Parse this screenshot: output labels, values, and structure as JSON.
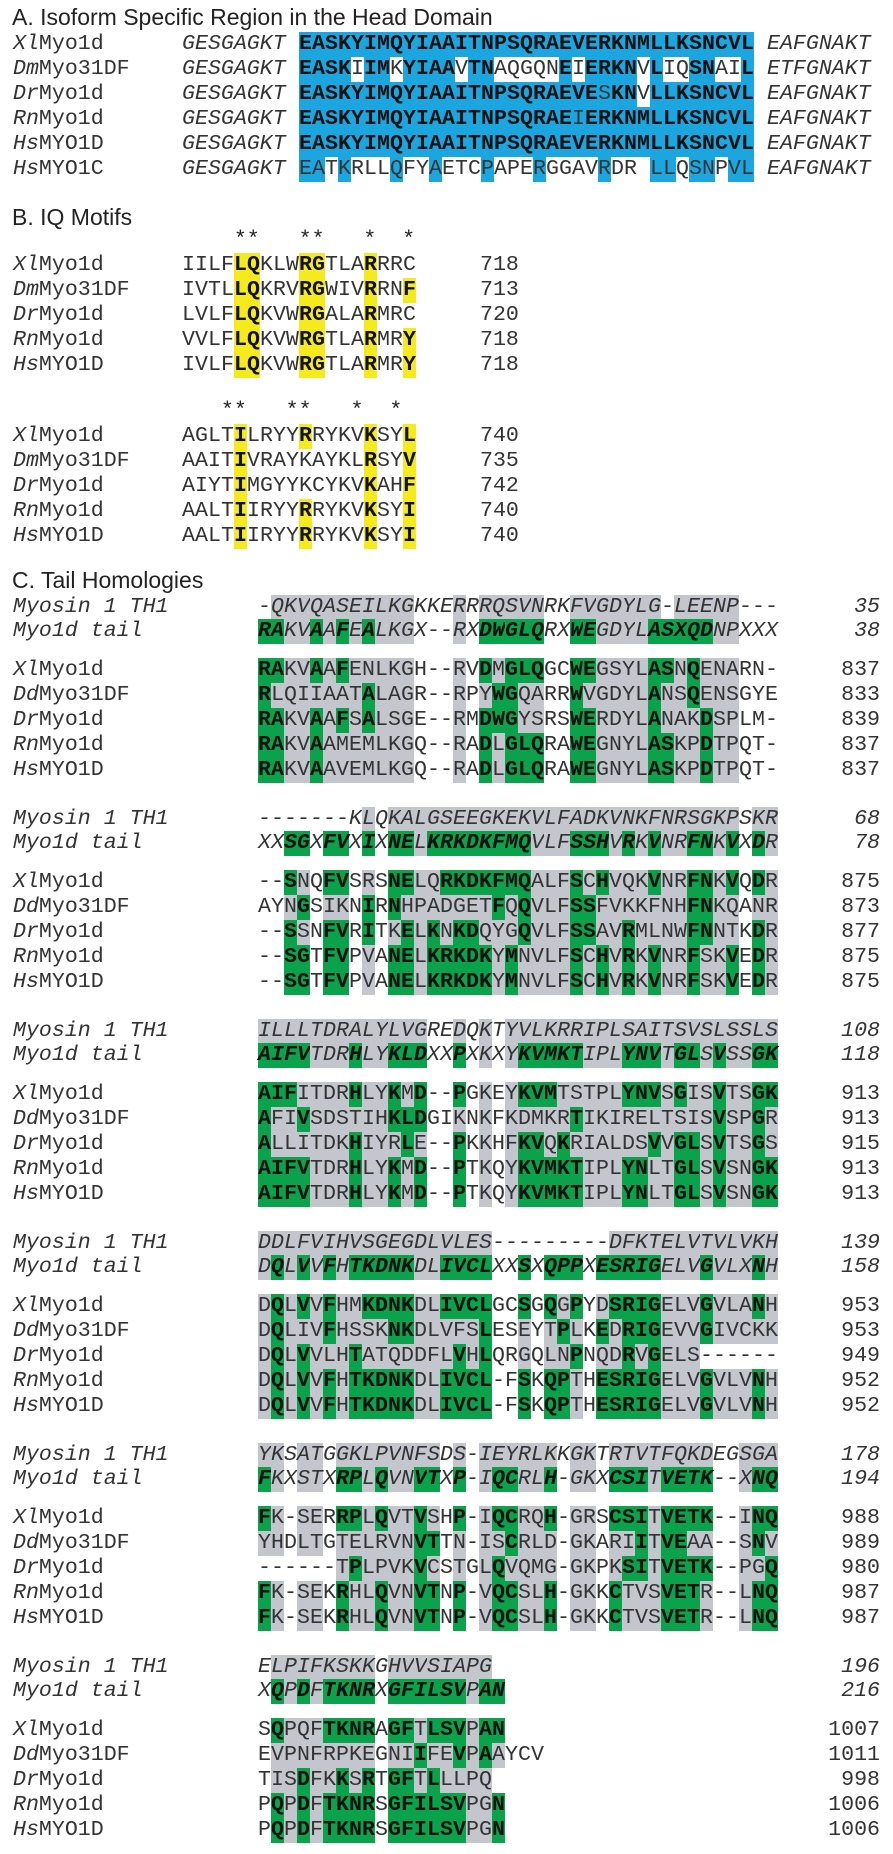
{
  "sectionA": {
    "title": "A. Isoform Specific Region in the Head Domain",
    "color": "#1ba6df",
    "rows": [
      {
        "species": "Xl",
        "gene": "Myo1d",
        "left": "GESGAGKT",
        "seq": "EASKYIMQYIAAITNPSQRAEVERKNMLLKSNCVL",
        "mask": "bbbbbbbbbbbbbbbbbbbbbbbbbbbbbbbbbbb",
        "right": "EAFGNAKT"
      },
      {
        "species": "Dm",
        "gene": "Myo31DF",
        "left": "GESGAGKT",
        "seq": "EASKIIMKYIAAVTNAQGQNEIERKNVLIQSNAIL",
        "mask": "bbbb.bb.bbbb.bb.....b.bbbb.b..bb..b",
        "right": "ETFGNAKT"
      },
      {
        "species": "Dr",
        "gene": "Myo1d",
        "left": "GESGAGKT",
        "seq": "EASKYIMQYIAAITNPSQRAEVESKNVLLKSNCVL",
        "mask": "bbbbbbbbbbbbbbbbbbbbbbbnbb.bbbbbbbb",
        "right": "EAFGNAKT"
      },
      {
        "species": "Rn",
        "gene": "Myo1d",
        "left": "GESGAGKT",
        "seq": "EASKYIMQYIAAITNPSQRAEIERKNMLLKSNCVL",
        "mask": "bbbbbbbbbbbbbbbbbbbbbnbbbbbbbbbbbbb",
        "right": "EAFGNAKT"
      },
      {
        "species": "Hs",
        "gene": "MYO1D",
        "left": "GESGAGKT",
        "seq": "EASKYIMQYIAAITNPSQRAEVERKNMLLKSNCVL",
        "mask": "bbbbbbbbbbbbbbbbbbbbbbbbbbbbbbbbbbb",
        "right": "EAFGNAKT"
      },
      {
        "species": "Hs",
        "gene": "MYO1C",
        "left": "GESGAGKT",
        "seq": "EATKRLLQFYAETCPAPERGGAVRDR LLQSNPVL",
        "mask": "nn.n...n..n...n...n....n...nn.nn.nn",
        "right": "EAFGNAKT"
      }
    ]
  },
  "sectionB": {
    "title": "B. IQ Motifs",
    "color": "#f4ea1e",
    "groups": [
      {
        "stars": "    **   **   *  *",
        "rows": [
          {
            "species": "Xl",
            "gene": "Myo1d",
            "seq": "IILFLQKLWRGTLARRRC",
            "mask": "....yy...yy...y...",
            "end": "718"
          },
          {
            "species": "Dm",
            "gene": "Myo31DF",
            "seq": "IVTLLQKRVRGWIVRRNF",
            "mask": "....yy...yy...y..y",
            "end": "713"
          },
          {
            "species": "Dr",
            "gene": "Myo1d",
            "seq": "LVLFLQKVWRGALARMRC",
            "mask": "....yy...yy...y...",
            "end": "720"
          },
          {
            "species": "Rn",
            "gene": "Myo1d",
            "seq": "VVLFLQKVWRGTLARMRY",
            "mask": "....yy...yy...y..y",
            "end": "718"
          },
          {
            "species": "Hs",
            "gene": "MYO1D",
            "seq": "IVLFLQKVWRGTLARMRY",
            "mask": "....yy...yy...y..y",
            "end": "718"
          }
        ]
      },
      {
        "stars": "   **   **   *  * ",
        "rows": [
          {
            "species": "Xl",
            "gene": "Myo1d",
            "seq": "AGLTILRYYRRYKVKSYL",
            "mask": "....y....y....y..y",
            "end": "740"
          },
          {
            "species": "Dm",
            "gene": "Myo31DF",
            "seq": "AAITIVRAYKAYKLRSYV",
            "mask": "....y.........y..y",
            "end": "735"
          },
          {
            "species": "Dr",
            "gene": "Myo1d",
            "seq": "AIYTIMGYYKCYKVKAHF",
            "mask": "....y.........y..y",
            "end": "742"
          },
          {
            "species": "Rn",
            "gene": "Myo1d",
            "seq": "AALTIIRYYRRYKVKSYI",
            "mask": "....y....y....y..y",
            "end": "740"
          },
          {
            "species": "Hs",
            "gene": "MYO1D",
            "seq": "AALTIIRYYRRYKVKSYI",
            "mask": "....y....y....y..y",
            "end": "740"
          }
        ]
      }
    ]
  },
  "sectionC": {
    "title": "C. Tail Homologies",
    "green": "#0ba24c",
    "gray": "#c3c6cc",
    "blocks": [
      {
        "ref": {
          "label": "Myosin 1 TH1",
          "seq": "-QKVQASEILKGKKERRRQSVNRKFVGDYLG-LEENP---",
          "end": "35"
        },
        "cons": {
          "label": "Myo1d tail",
          "seq": "RAKVAAFEALKGX--RXDWGLQRXWEGDYLASXQDNPXXX",
          "end": "38"
        },
        "mask": "ggssgsgsgsss...s.ggggg..ggssssgggggss...",
        "rows": [
          {
            "species": "Xl",
            "gene": "Myo1d",
            "seq": "RAKVAAFENLKGH--RVDMGLQGCWEGSYLASNQENARN-",
            "end": "837"
          },
          {
            "species": "Dd",
            "gene": "Myo31DF",
            "seq": "RLQIIAATALAGR--RPYWGQARRWVGDYLANSQENSGYE",
            "end": "833"
          },
          {
            "species": "Dr",
            "gene": "Myo1d",
            "seq": "RAKVAAFSALSGE--RMDWGYSRSWERDYLANAKDSPLM-",
            "end": "839"
          },
          {
            "species": "Rn",
            "gene": "Myo1d",
            "seq": "RAKVAAMEMLKGQ--RADLGLQRAWEGNYLASKPDTPQT-",
            "end": "837"
          },
          {
            "species": "Hs",
            "gene": "MYO1D",
            "seq": "RAKVAAVEMLKGQ--RADLGLQRAWEGNYLASKPDTPQT-",
            "end": "837"
          }
        ]
      },
      {
        "ref": {
          "label": "Myosin 1 TH1",
          "seq": "-------KLQKALGSEEGKEKVLFADKVNKFNRSGKPSKR",
          "end": "68"
        },
        "cons": {
          "label": "Myo1d tail",
          "seq": "XXSGXFVXIXNELKRKDKFMQVLFSSHVRKVNRFNKVXDR",
          "end": "78"
        },
        "mask": "..gg.gg.g.ggsggggggggsssgggsgsgssggsg.gs",
        "rows": [
          {
            "species": "Xl",
            "gene": "Myo1d",
            "seq": "--SNQFVSRSNELQRKDKFMQALFSCHVQKVNRFNKVQDR",
            "end": "875"
          },
          {
            "species": "Dd",
            "gene": "Myo31DF",
            "seq": "AYNGSIKNIRNHPADGETFQQVLFSSFVKKFNHFNKQANR",
            "end": "873"
          },
          {
            "species": "Dr",
            "gene": "Myo1d",
            "seq": "--SSNFVRITKELKNKDQYGQVLFSSAVRMLNWFNNTKDR",
            "end": "877"
          },
          {
            "species": "Rn",
            "gene": "Myo1d",
            "seq": "--SGTFVPVANELKRKDKYMNVLFSCHVRKVNRFSKVEDR",
            "end": "875"
          },
          {
            "species": "Hs",
            "gene": "MYO1D",
            "seq": "--SGTFVPVANELKRKDKYMNVLFSCHVRKVNRFSKVEDR",
            "end": "875"
          }
        ]
      },
      {
        "ref": {
          "label": "Myosin 1 TH1",
          "seq": "ILLLTDRALYLVGREDQKTYVLKRRIPLSAITSVSLSSLS",
          "end": "108"
        },
        "cons": {
          "label": "Myo1d tail",
          "seq": "AIFVTDRHLYKLDXXPXKXYKVMKTIPLYNVTGLSVSSGK",
          "end": "118"
        },
        "mask": "ggggsssgssggg..g.s.sgggggsssgggsggsgssgg",
        "rows": [
          {
            "species": "Xl",
            "gene": "Myo1d",
            "seq": "AIFITDRHLYKMD--PGKEYKVMTSTPLYNVSGISVTSGK",
            "end": "913"
          },
          {
            "species": "Dd",
            "gene": "Myo31DF",
            "seq": "AFIVSDSTIHKLDGIKNKFKDMKRTIKIRELTSISVSPGR",
            "end": "913"
          },
          {
            "species": "Dr",
            "gene": "Myo1d",
            "seq": "ALLITDKHIYRLE--PKKHFKVQKRIALDSVVGLSVTSGS",
            "end": "915"
          },
          {
            "species": "Rn",
            "gene": "Myo1d",
            "seq": "AIFVTDRHLYKMD--PTKQYKVMKTIPLYNLTGLSVSNGK",
            "end": "913"
          },
          {
            "species": "Hs",
            "gene": "MYO1D",
            "seq": "AIFVTDRHLYKMD--PTKQYKVMKTIPLYNLTGLSVSNGK",
            "end": "913"
          }
        ]
      },
      {
        "ref": {
          "label": "Myosin 1 TH1",
          "seq": "DDLFVIHVSGEGDLVLES---------DFKTELVTVLVKH",
          "end": "139"
        },
        "cons": {
          "label": "Myo1d tail",
          "seq": "DQLVVFHTKDNKDLIVCLXXSXQPPXESRIGELVGVLXNH",
          "end": "158"
        },
        "mask": "sgsgsgsgggggssgggg..g.ggg.gggggsssgsssgs",
        "rows": [
          {
            "species": "Xl",
            "gene": "Myo1d",
            "seq": "DQLVVFHMKDNKDLIVCLGCSGQGPYDSRIGELVGVLANH",
            "end": "953"
          },
          {
            "species": "Dd",
            "gene": "Myo31DF",
            "seq": "DQLIVFHSSKNKDLVFSLESEYTPLKEDRIGEVVGIVCKK",
            "end": "953"
          },
          {
            "species": "Dr",
            "gene": "Myo1d",
            "seq": "DQLVVLHTATQDDFLVHLQRGQLNPNQDRVGELS------",
            "end": "949"
          },
          {
            "species": "Rn",
            "gene": "Myo1d",
            "seq": "DQLVVFHTKDNKDLIVCL-FSKQPTHESRIGELVGVLVNH",
            "end": "952"
          },
          {
            "species": "Hs",
            "gene": "MYO1D",
            "seq": "DQLVVFHTKDNKDLIVCL-FSKQPTHESRIGELVGVLVNH",
            "end": "952"
          }
        ]
      },
      {
        "ref": {
          "label": "Myosin 1 TH1",
          "seq": "YKSATGGKLPVNFSDS-IEYRLKKGKTRTVTFQKDEGSGA",
          "end": "178"
        },
        "cons": {
          "label": "Myo1d tail",
          "seq": "FKXSTXRPLQVNVTXP-IQCRLH-GKXCSITVETK--XNQ",
          "end": "194"
        },
        "mask": "gs.ss.ggsgssgg.g.sggssg.ss.gggsgggg..sgg",
        "rows": [
          {
            "species": "Xl",
            "gene": "Myo1d",
            "seq": "FK-SERRPLQVTVSHP-IQCRQH-GRSCSITVETK--INQ",
            "end": "988"
          },
          {
            "species": "Dd",
            "gene": "Myo31DF",
            "seq": "YHDLTGTELRVNVTTN-ISCRLD-GKARIITVEAA--SNV",
            "end": "989"
          },
          {
            "species": "Dr",
            "gene": "Myo1d",
            "seq": "------TPLPVKVCSTGLQVQMG-GKPKSITVETK--PGQ",
            "end": "980"
          },
          {
            "species": "Rn",
            "gene": "Myo1d",
            "seq": "FK-SEKRHLQVNVTNP-VQCSLH-GKKCTVSVETR--LNQ",
            "end": "987"
          },
          {
            "species": "Hs",
            "gene": "MYO1D",
            "seq": "FK-SEKRHLQVNVTNP-VQCSLH-GKKCTVSVETR--LNQ",
            "end": "987"
          }
        ]
      },
      {
        "ref": {
          "label": "Myosin 1 TH1",
          "seq": "ELPIFKSKKGHVVSIAPG",
          "end": "196"
        },
        "cons": {
          "label": "Myo1d tail",
          "seq": "XQPDFTKNRXGFILSVPAN",
          "end": "216"
        },
        "mask": ".gsgsgggg.ggggggsgg",
        "rows": [
          {
            "species": "Xl",
            "gene": "Myo1d",
            "seq": "SQPQFTKNRAGFTLSVPAN",
            "end": "1007"
          },
          {
            "species": "Dd",
            "gene": "Myo31DF",
            "seq": "EVPNFRPKEGNIIFEVPAAYCV",
            "end": "1011"
          },
          {
            "species": "Dr",
            "gene": "Myo1d",
            "seq": "TISDFKKSRTGFTLLLPQ",
            "end": "998"
          },
          {
            "species": "Rn",
            "gene": "Myo1d",
            "seq": "PQPDFTKNRSGFILSVPGN",
            "end": "1006"
          },
          {
            "species": "Hs",
            "gene": "MYO1D",
            "seq": "PQPDFTKNRSGFILSVPGN",
            "end": "1006"
          }
        ]
      }
    ]
  }
}
